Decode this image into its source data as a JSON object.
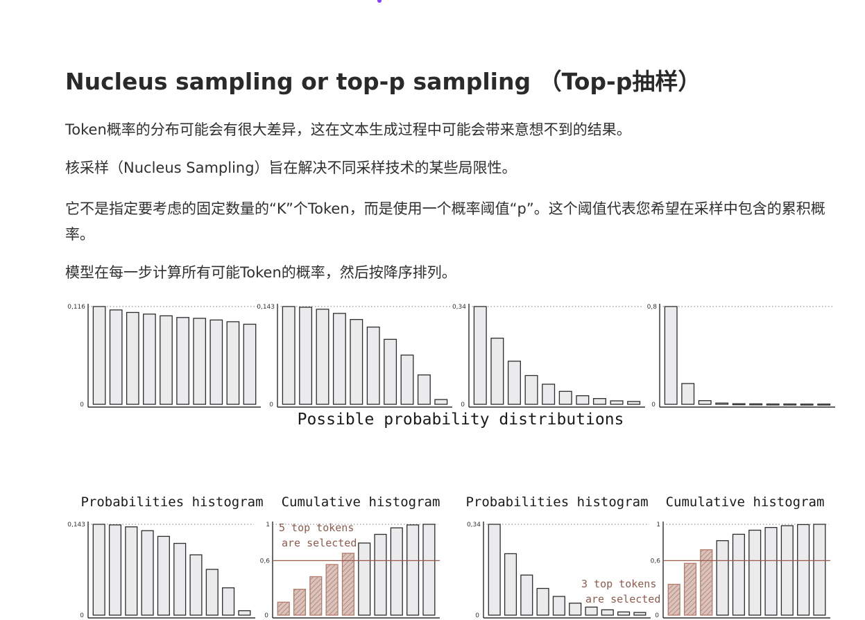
{
  "title": "Nucleus sampling or top-p sampling （Top-p抽样）",
  "paragraphs": [
    "Token概率的分布可能会有很大差异，这在文本生成过程中可能会带来意想不到的结果。",
    "核采样（Nucleus Sampling）旨在解决不同采样技术的某些局限性。",
    "它不是指定要考虑的固定数量的“K”个Token，而是使用一个概率阈值“p”。这个阈值代表您希望在采样中包含的累积概率。",
    "模型在每一步计算所有可能Token的概率，然后按降序排列。"
  ],
  "colors": {
    "bar_fill": "#ebebee",
    "bar_stroke": "#2b2b2b",
    "selected_fill": "#d9c3bc",
    "selected_stroke": "#b27a6a",
    "threshold_line": "#9c5a4a",
    "annotation_text": "#8f5a4c",
    "dotted_max": "#7a7a7a"
  },
  "figure": {
    "distributions_caption": "Possible probability distributions",
    "histogram_titles": [
      "Probabilities histogram",
      "Cumulative histogram",
      "Probabilities histogram",
      "Cumulative histogram"
    ],
    "annotations": {
      "left_line1": "5 top tokens",
      "left_line2": "are selected",
      "right_line1": "3 top tokens",
      "right_line2": "are selected"
    }
  },
  "chart_data": [
    {
      "type": "bar",
      "role": "distribution",
      "ylim": [
        0,
        0.116
      ],
      "ymax_label": "0,116",
      "zero_label": "0",
      "values": [
        0.116,
        0.112,
        0.109,
        0.107,
        0.105,
        0.103,
        0.102,
        0.1,
        0.098,
        0.095
      ]
    },
    {
      "type": "bar",
      "role": "distribution",
      "ylim": [
        0,
        0.143
      ],
      "ymax_label": "0,143",
      "zero_label": "0",
      "values": [
        0.143,
        0.142,
        0.139,
        0.133,
        0.124,
        0.113,
        0.095,
        0.072,
        0.043,
        0.007
      ]
    },
    {
      "type": "bar",
      "role": "distribution",
      "ylim": [
        0,
        0.34
      ],
      "ymax_label": "0,34",
      "zero_label": "0",
      "values": [
        0.34,
        0.23,
        0.15,
        0.1,
        0.07,
        0.045,
        0.03,
        0.02,
        0.012,
        0.01
      ]
    },
    {
      "type": "bar",
      "role": "distribution",
      "ylim": [
        0,
        0.8
      ],
      "ymax_label": "0,8",
      "zero_label": "0",
      "values": [
        0.8,
        0.17,
        0.03,
        0.01,
        0.005,
        0.004,
        0.003,
        0.003,
        0.002,
        0.002
      ]
    },
    {
      "type": "bar",
      "role": "probabilities",
      "ylim": [
        0,
        0.143
      ],
      "ymax_label": "0,143",
      "zero_label": "0",
      "values": [
        0.143,
        0.142,
        0.139,
        0.133,
        0.124,
        0.113,
        0.095,
        0.072,
        0.043,
        0.007
      ]
    },
    {
      "type": "bar",
      "role": "cumulative",
      "ylim": [
        0,
        1
      ],
      "ymax_label": "1",
      "zero_label": "0",
      "threshold": 0.6,
      "threshold_label": "0,6",
      "selected_count": 5,
      "values": [
        0.143,
        0.285,
        0.424,
        0.557,
        0.681,
        0.794,
        0.889,
        0.961,
        0.993,
        1.0
      ]
    },
    {
      "type": "bar",
      "role": "probabilities",
      "ylim": [
        0,
        0.34
      ],
      "ymax_label": "0,34",
      "zero_label": "0",
      "values": [
        0.34,
        0.23,
        0.15,
        0.1,
        0.07,
        0.045,
        0.03,
        0.02,
        0.012,
        0.01
      ]
    },
    {
      "type": "bar",
      "role": "cumulative",
      "ylim": [
        0,
        1
      ],
      "ymax_label": "1",
      "zero_label": "0",
      "threshold": 0.6,
      "threshold_label": "0,6",
      "selected_count": 3,
      "values": [
        0.34,
        0.57,
        0.72,
        0.82,
        0.89,
        0.935,
        0.965,
        0.985,
        0.997,
        1.0
      ]
    }
  ]
}
